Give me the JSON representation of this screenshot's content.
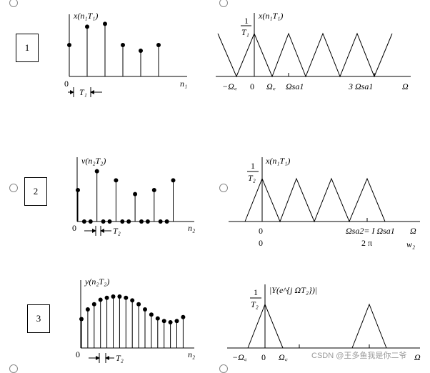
{
  "rows": [
    {
      "number": "1",
      "left": {
        "ylabel": "x(n₁T₁)",
        "origin": "0",
        "xaxis": "n₁",
        "spacing": "T₁",
        "stem_values": [
          0.55,
          0.87,
          0.92,
          0.55,
          0.45,
          0.55
        ]
      },
      "right": {
        "ylabel": "x(n₁T₁)",
        "peak_num": "1",
        "peak_den": "T₁",
        "ticks": [
          "−Ω꜀",
          "0",
          "Ω꜀",
          "Ωsa1",
          "3 Ωsa1",
          "Ω"
        ]
      }
    },
    {
      "number": "2",
      "left": {
        "ylabel": "v(n₂T₂)",
        "origin": "0",
        "xaxis": "n₂",
        "spacing": "T₂",
        "stem_values": [
          0.55,
          0,
          0,
          0.88,
          0,
          0,
          0.72,
          0,
          0,
          0.48,
          0,
          0,
          0.55,
          0,
          0,
          0.72
        ]
      },
      "right": {
        "ylabel": "x(n₁T₁)",
        "peak_num": "1",
        "peak_den": "T₂",
        "ticks": [
          "0",
          "0",
          "Ωsa2= I Ωsa1",
          "2 π",
          "Ω",
          "w₂"
        ]
      }
    },
    {
      "number": "3",
      "left": {
        "ylabel": "y(n₂T₂)",
        "origin": "0",
        "xaxis": "n₂",
        "spacing": "T₂",
        "stem_values": [
          0.45,
          0.6,
          0.68,
          0.75,
          0.78,
          0.8,
          0.8,
          0.78,
          0.74,
          0.68,
          0.6,
          0.52,
          0.46,
          0.42,
          0.4,
          0.42,
          0.48
        ]
      },
      "right": {
        "ylabel": "|Y(e^{j ΩT₂})|",
        "peak_num": "1",
        "peak_den": "T₂",
        "ticks": [
          "−Ω꜀",
          "0",
          "Ω꜀",
          "Ω"
        ]
      }
    }
  ],
  "watermark": "CSDN @王多鱼我是你二爷"
}
